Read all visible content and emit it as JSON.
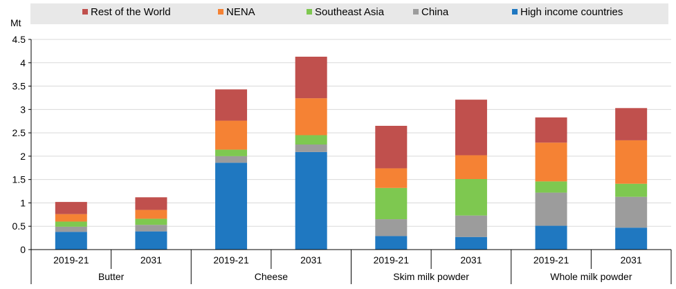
{
  "chart_data": {
    "type": "bar",
    "stacked": true,
    "unit_label": "Mt",
    "ylim": [
      0,
      4.5
    ],
    "yticks": [
      "0",
      "0.5",
      "1",
      "1.5",
      "2",
      "2.5",
      "3",
      "3.5",
      "4",
      "4.5"
    ],
    "ytick_values": [
      0,
      0.5,
      1,
      1.5,
      2,
      2.5,
      3,
      3.5,
      4,
      4.5
    ],
    "groups": [
      {
        "name": "Butter",
        "categories": [
          "2019-21",
          "2031"
        ]
      },
      {
        "name": "Cheese",
        "categories": [
          "2019-21",
          "2031"
        ]
      },
      {
        "name": "Skim milk powder",
        "categories": [
          "2019-21",
          "2031"
        ]
      },
      {
        "name": "Whole milk powder",
        "categories": [
          "2019-21",
          "2031"
        ]
      }
    ],
    "series": [
      {
        "name": "High income countries",
        "color": "#1f78c1",
        "values": [
          0.38,
          0.39,
          1.86,
          2.09,
          0.29,
          0.27,
          0.51,
          0.47
        ]
      },
      {
        "name": "China",
        "color": "#9c9c9c",
        "values": [
          0.11,
          0.14,
          0.14,
          0.16,
          0.36,
          0.46,
          0.71,
          0.66
        ]
      },
      {
        "name": "Southeast Asia",
        "color": "#7ec850",
        "values": [
          0.11,
          0.13,
          0.14,
          0.2,
          0.67,
          0.78,
          0.24,
          0.28
        ]
      },
      {
        "name": "NENA",
        "color": "#f58234",
        "values": [
          0.16,
          0.19,
          0.62,
          0.79,
          0.42,
          0.51,
          0.83,
          0.93
        ]
      },
      {
        "name": "Rest of the World",
        "color": "#c0504d",
        "values": [
          0.26,
          0.27,
          0.67,
          0.89,
          0.91,
          1.19,
          0.54,
          0.69
        ]
      }
    ],
    "legend_order": [
      "Rest of the World",
      "NENA",
      "Southeast Asia",
      "China",
      "High income countries"
    ],
    "legend_position": "top"
  }
}
